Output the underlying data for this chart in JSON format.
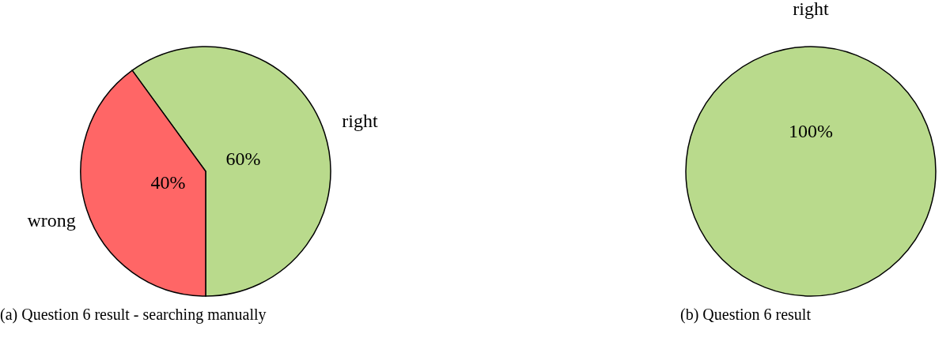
{
  "chart_data": [
    {
      "type": "pie",
      "title": "(a) Question 6 result - searching manually",
      "categories": [
        "right",
        "wrong"
      ],
      "values": [
        60,
        40
      ],
      "colors": [
        "#b9da8c",
        "#ff6666"
      ],
      "value_labels": [
        "60%",
        "40%"
      ]
    },
    {
      "type": "pie",
      "title": "(b) Question 6 result",
      "categories": [
        "right"
      ],
      "values": [
        100
      ],
      "colors": [
        "#b9da8c"
      ],
      "value_labels": [
        "100%"
      ]
    }
  ]
}
